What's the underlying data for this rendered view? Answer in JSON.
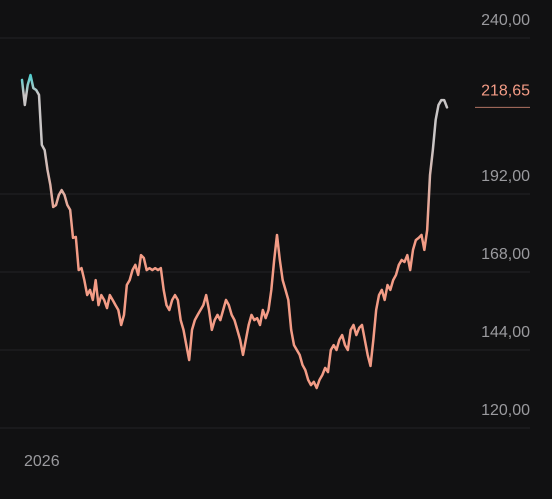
{
  "chart_data": {
    "type": "line",
    "values": [
      227.1,
      219.4,
      225.5,
      228.6,
      224.6,
      224,
      222.5,
      207.1,
      205.5,
      199.4,
      194.8,
      188,
      188.6,
      191.7,
      193.2,
      191.7,
      188.6,
      187.1,
      178.5,
      178.8,
      168.6,
      169.2,
      165.5,
      160.9,
      162.5,
      159.4,
      165.5,
      157.8,
      160.9,
      159.4,
      156.9,
      160.9,
      159.4,
      157.8,
      156.3,
      151.7,
      154.8,
      164,
      165.5,
      168.6,
      170.2,
      167.1,
      173.2,
      172.3,
      168.6,
      169.2,
      168.6,
      169.2,
      168.6,
      169.2,
      162.5,
      157.8,
      156.3,
      159.4,
      160.9,
      159.4,
      153.2,
      150.2,
      145.5,
      140.9,
      150.2,
      153.2,
      154.8,
      156.3,
      157.8,
      160.9,
      156.3,
      150.2,
      153.2,
      154.8,
      153.2,
      156.3,
      159.4,
      157.8,
      154.8,
      153.2,
      150.2,
      147.1,
      142.5,
      147.1,
      151.7,
      154.8,
      153.2,
      153.8,
      151.7,
      156.3,
      153.8,
      156.3,
      162.5,
      171.7,
      179.4,
      171.7,
      165.5,
      162.5,
      159.4,
      150.2,
      145.5,
      144,
      142.5,
      139.4,
      137.8,
      134.8,
      133.2,
      134.2,
      132.3,
      134.8,
      136.3,
      138.5,
      137.2,
      144,
      145.5,
      144,
      147.1,
      148.6,
      145.5,
      144,
      150.2,
      151.7,
      148.6,
      150.8,
      151.7,
      147.1,
      142.5,
      139.1,
      147.1,
      156.3,
      160.9,
      162.5,
      159.4,
      164,
      162.5,
      165.5,
      167.1,
      170.2,
      171.7,
      171.1,
      173.2,
      168.6,
      174.8,
      177.8,
      178.5,
      179.4,
      174.8,
      180.9,
      197.8,
      205.5,
      214.8,
      219.4,
      220.9,
      220.9,
      218.65
    ],
    "price_label": "218,65",
    "price_color": "#f39c86",
    "color_high": "#4fd0cf",
    "color_mid": "#c9c6c6",
    "color_low": "#f39c86",
    "ylim": [
      120,
      240
    ],
    "yticks": [
      {
        "value": 120,
        "label": "120,00"
      },
      {
        "value": 144,
        "label": "144,00"
      },
      {
        "value": 168,
        "label": "168,00"
      },
      {
        "value": 192,
        "label": "192,00"
      },
      {
        "value": 240,
        "label": "240,00"
      }
    ],
    "grid": true,
    "x_axis_label": "2026"
  }
}
